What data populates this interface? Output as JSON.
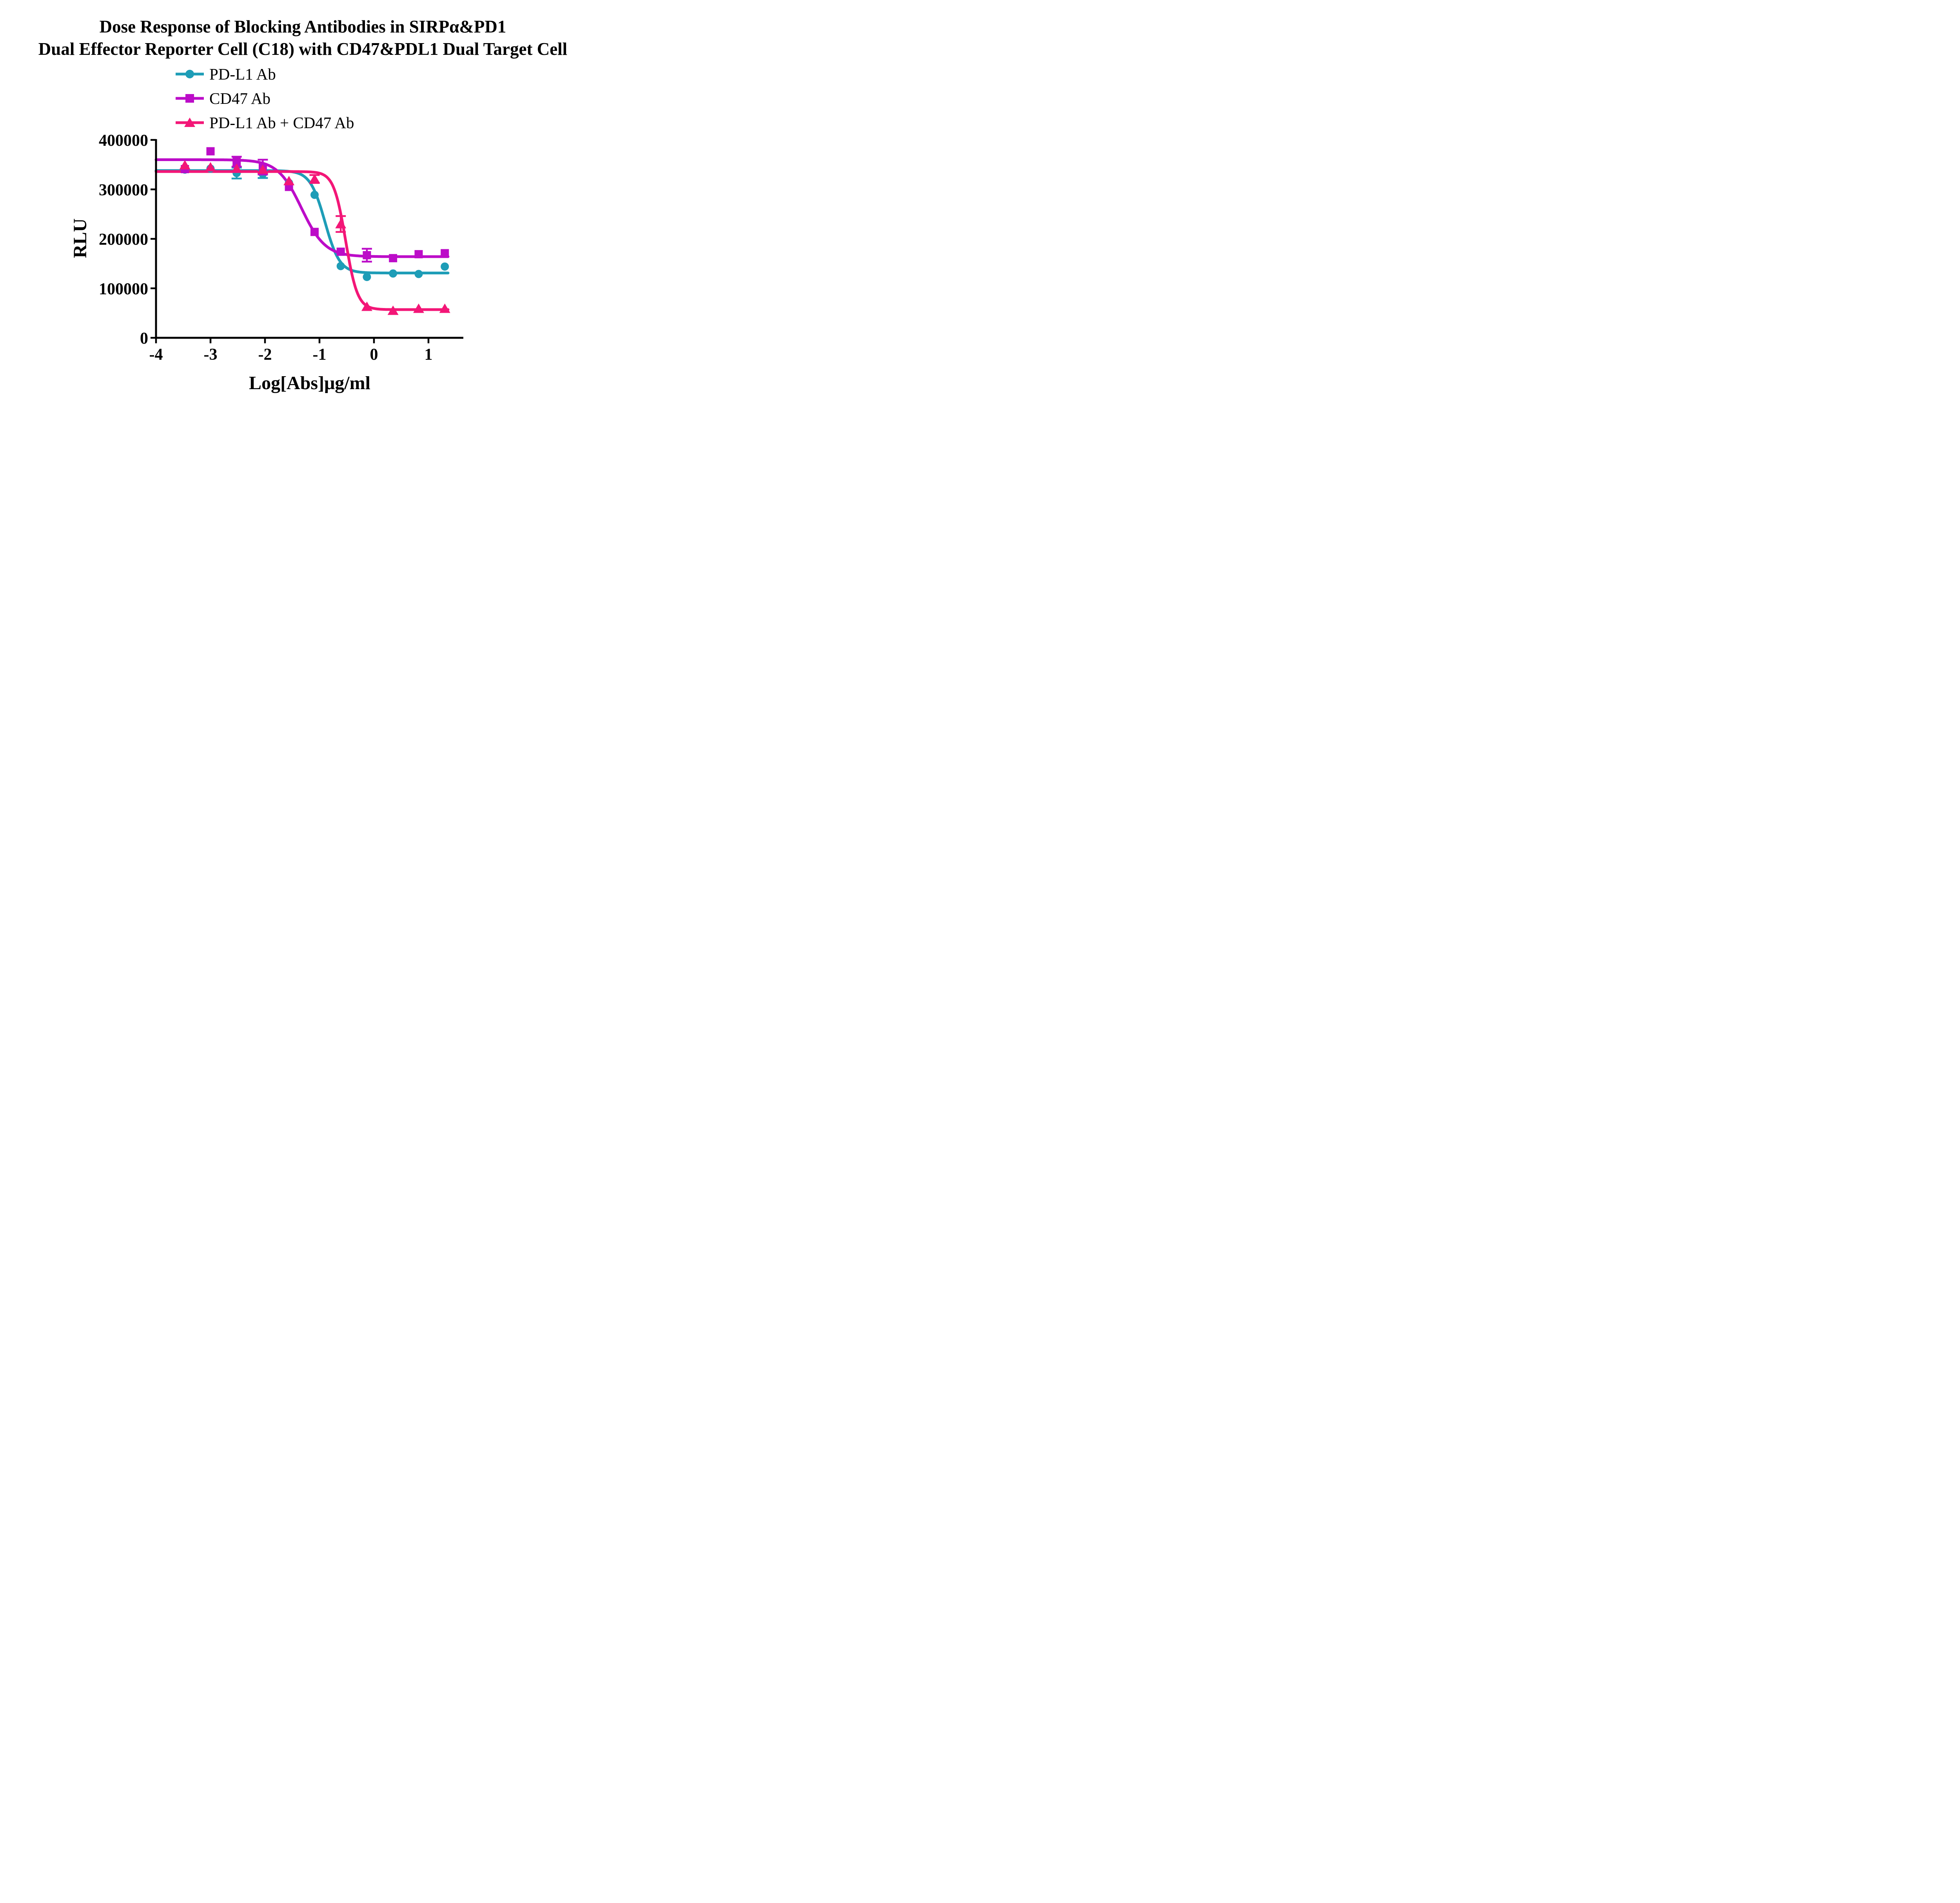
{
  "title": {
    "line1": "Dose Response of Blocking Antibodies in SIRPα&PD1",
    "line2": "Dual Effector Reporter Cell (C18) with CD47&PDL1 Dual Target Cell"
  },
  "legend": {
    "items": [
      {
        "label": "PD-L1 Ab",
        "marker": "circle",
        "color": "#1E9DB7"
      },
      {
        "label": "CD47 Ab",
        "marker": "square",
        "color": "#BC0CC8"
      },
      {
        "label": "PD-L1 Ab + CD47 Ab",
        "marker": "triangle",
        "color": "#F31677"
      }
    ]
  },
  "axes": {
    "x": {
      "label": "Log[Abs]μg/ml",
      "ticks": [
        "-4",
        "-3",
        "-2",
        "-1",
        "0",
        "1"
      ],
      "tick_values": [
        -4,
        -3,
        -2,
        -1,
        0,
        1
      ],
      "min": -4,
      "max": 1.64
    },
    "y": {
      "label": "RLU",
      "ticks": [
        "0",
        "100000",
        "200000",
        "300000",
        "400000"
      ],
      "tick_values": [
        0,
        100000,
        200000,
        300000,
        400000
      ],
      "min": 0,
      "max": 400000
    }
  },
  "chart_data": {
    "type": "scatter",
    "x": [
      -3.47,
      -3.0,
      -2.52,
      -2.04,
      -1.56,
      -1.09,
      -0.61,
      -0.13,
      0.35,
      0.82,
      1.3
    ],
    "xlabel": "Log[Abs]μg/ml",
    "ylabel": "RLU",
    "ylim": [
      0,
      400000
    ],
    "xlim": [
      -4,
      1.64
    ],
    "grid": false,
    "legend_position": "top-left",
    "series": [
      {
        "name": "PD-L1 Ab",
        "marker": "circle",
        "color": "#1E9DB7",
        "values": [
          340000,
          342000,
          333000,
          331000,
          313000,
          289000,
          145000,
          123000,
          130000,
          129000,
          144000
        ],
        "errors": [
          0,
          0,
          11000,
          8000,
          0,
          0,
          0,
          0,
          0,
          0,
          0
        ],
        "fit": {
          "top": 338000,
          "bottom": 131000,
          "logec50": -0.9,
          "hill": 3.2
        }
      },
      {
        "name": "CD47 Ab",
        "marker": "square",
        "color": "#BC0CC8",
        "values": [
          341000,
          377000,
          356000,
          345000,
          305000,
          214000,
          174000,
          167000,
          161000,
          169000,
          171000
        ],
        "errors": [
          0,
          0,
          10000,
          15000,
          0,
          0,
          0,
          13000,
          0,
          0,
          0
        ],
        "fit": {
          "top": 360000,
          "bottom": 164000,
          "logec50": -1.33,
          "hill": 2.0
        }
      },
      {
        "name": "PD-L1 Ab + CD47 Ab",
        "marker": "triangle",
        "color": "#F31677",
        "values": [
          349000,
          345000,
          342000,
          340000,
          317000,
          321000,
          230000,
          63000,
          55000,
          59000,
          59000
        ],
        "errors": [
          0,
          0,
          0,
          0,
          0,
          8000,
          16000,
          0,
          0,
          0,
          0
        ],
        "fit": {
          "top": 336000,
          "bottom": 57000,
          "logec50": -0.52,
          "hill": 4.0
        }
      }
    ]
  }
}
